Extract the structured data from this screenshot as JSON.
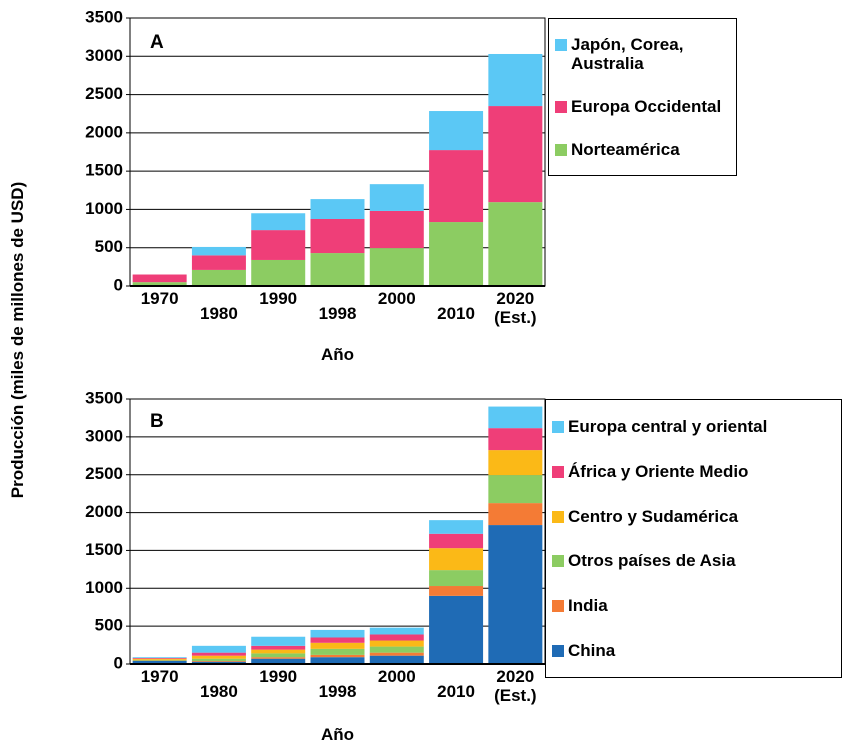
{
  "y_axis_label": "Producción (miles de millones de USD)",
  "chart_data": [
    {
      "type": "bar",
      "stacked": true,
      "panel_label": "A",
      "x_label": "Año",
      "categories": [
        "1970",
        "1980",
        "1990",
        "1998",
        "2000",
        "2010",
        "2020 (Est.)"
      ],
      "series": [
        {
          "name": "Norteamérica",
          "color": "#8ccc62",
          "values": [
            50,
            210,
            340,
            430,
            495,
            835,
            1095
          ]
        },
        {
          "name": "Europa Occidental",
          "color": "#ef3e78",
          "values": [
            100,
            190,
            390,
            445,
            485,
            940,
            1255
          ]
        },
        {
          "name": "Japón, Corea, Australia",
          "color": "#5bc8f5",
          "values": [
            0,
            110,
            220,
            260,
            350,
            510,
            680
          ]
        }
      ],
      "ylim": [
        0,
        3500
      ],
      "yticks": [
        0,
        500,
        1000,
        1500,
        2000,
        2500,
        3000,
        3500
      ],
      "grid": true
    },
    {
      "type": "bar",
      "stacked": true,
      "panel_label": "B",
      "x_label": "Año",
      "categories": [
        "1970",
        "1980",
        "1990",
        "1998",
        "2000",
        "2010",
        "2020 (Est.)"
      ],
      "series": [
        {
          "name": "China",
          "color": "#1f6bb5",
          "values": [
            40,
            30,
            70,
            90,
            110,
            900,
            1835
          ]
        },
        {
          "name": "India",
          "color": "#f47b35",
          "values": [
            5,
            10,
            20,
            30,
            40,
            130,
            290
          ]
        },
        {
          "name": "Otros países de Asia",
          "color": "#8ccc62",
          "values": [
            10,
            30,
            50,
            80,
            80,
            210,
            370
          ]
        },
        {
          "name": "Centro y Sudamérica",
          "color": "#fbb917",
          "values": [
            15,
            40,
            50,
            80,
            80,
            290,
            330
          ]
        },
        {
          "name": "África y Oriente Medio",
          "color": "#ef3e78",
          "values": [
            10,
            40,
            50,
            70,
            80,
            190,
            290
          ]
        },
        {
          "name": "Europa central y oriental",
          "color": "#5bc8f5",
          "values": [
            10,
            90,
            120,
            100,
            90,
            180,
            285
          ]
        }
      ],
      "ylim": [
        0,
        3500
      ],
      "yticks": [
        0,
        500,
        1000,
        1500,
        2000,
        2500,
        3000,
        3500
      ],
      "grid": true
    }
  ]
}
